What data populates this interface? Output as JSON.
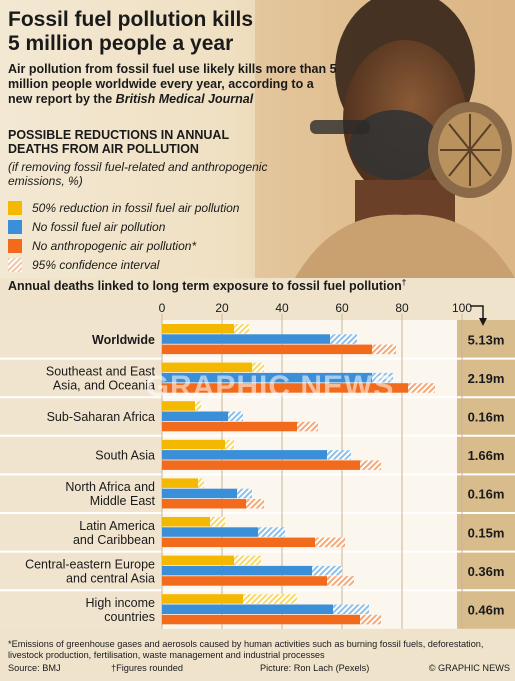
{
  "header": {
    "title_line1": "Fossil fuel pollution kills",
    "title_line2": "5 million people a year",
    "intro_text": "Air pollution from fossil fuel use likely kills more than 5 million people worldwide every year, according to a new report by the",
    "intro_journal": "British Medical Journal",
    "subheading_line1": "POSSIBLE REDUCTIONS IN ANNUAL",
    "subheading_line2": "DEATHS FROM AIR POLLUTION",
    "subnote": "(if removing fossil fuel-related and anthropogenic emissions, %)"
  },
  "legend": [
    {
      "label": "50% reduction in fossil fuel air pollution",
      "color": "#f5b800"
    },
    {
      "label": "No fossil fuel air pollution",
      "color": "#3a8fd8"
    },
    {
      "label": "No anthropogenic air pollution*",
      "color": "#f26b1d"
    },
    {
      "label": "95% confidence interval",
      "color": "#f2c7a6"
    }
  ],
  "chart_title": "Annual deaths linked to long term exposure to fossil fuel pollution",
  "chart_title_mark": "†",
  "chart_data": {
    "type": "bar",
    "orientation": "horizontal",
    "xlim": [
      0,
      100
    ],
    "xticks": [
      0,
      20,
      40,
      60,
      80,
      100
    ],
    "categories": [
      "Worldwide",
      "Southeast and East Asia, and Oceania",
      "Sub-Saharan Africa",
      "South Asia",
      "North Africa and Middle East",
      "Latin America and Caribbean",
      "Central-eastern Europe and central Asia",
      "High income countries"
    ],
    "category_lines": [
      [
        "Worldwide"
      ],
      [
        "Southeast and East",
        "Asia, and Oceania"
      ],
      [
        "Sub-Saharan Africa"
      ],
      [
        "South Asia"
      ],
      [
        "North Africa and",
        "Middle East"
      ],
      [
        "Latin America",
        "and Caribbean"
      ],
      [
        "Central-eastern Europe",
        "and central Asia"
      ],
      [
        "High income",
        "countries"
      ]
    ],
    "series": [
      {
        "name": "50% reduction in fossil fuel air pollution",
        "color": "#f5b800",
        "values": [
          24,
          30,
          11,
          21,
          12,
          16,
          24,
          27
        ],
        "ci_high": [
          29,
          34,
          13,
          24,
          14,
          21,
          33,
          45
        ]
      },
      {
        "name": "No fossil fuel air pollution",
        "color": "#3a8fd8",
        "values": [
          56,
          70,
          22,
          55,
          25,
          32,
          50,
          57
        ],
        "ci_high": [
          65,
          77,
          27,
          63,
          30,
          41,
          60,
          69
        ]
      },
      {
        "name": "No anthropogenic air pollution*",
        "color": "#f26b1d",
        "values": [
          70,
          82,
          45,
          66,
          28,
          51,
          55,
          66
        ],
        "ci_high": [
          78,
          91,
          52,
          73,
          34,
          61,
          64,
          73
        ]
      }
    ],
    "totals": [
      "5.13m",
      "2.19m",
      "0.16m",
      "1.66m",
      "0.16m",
      "0.15m",
      "0.36m",
      "0.46m"
    ],
    "grid": true
  },
  "colors": {
    "accent_yellow": "#f5b800",
    "accent_blue": "#3a8fd8",
    "accent_orange": "#f26b1d",
    "hatch_light": "#f2c7a6"
  },
  "footnote": "*Emissions of greenhouse gases and aerosols caused by human activities such as burning fossil fuels, deforestation, livestock production, fertilisation, waste management and industrial processes",
  "source": {
    "source_text": "Source: BMJ",
    "rounded_text": "†Figures rounded",
    "picture_text": "Picture: Ron Lach (Pexels)",
    "copyright_text": "© GRAPHIC NEWS"
  },
  "watermark_text": "GRAPHIC NEWS"
}
